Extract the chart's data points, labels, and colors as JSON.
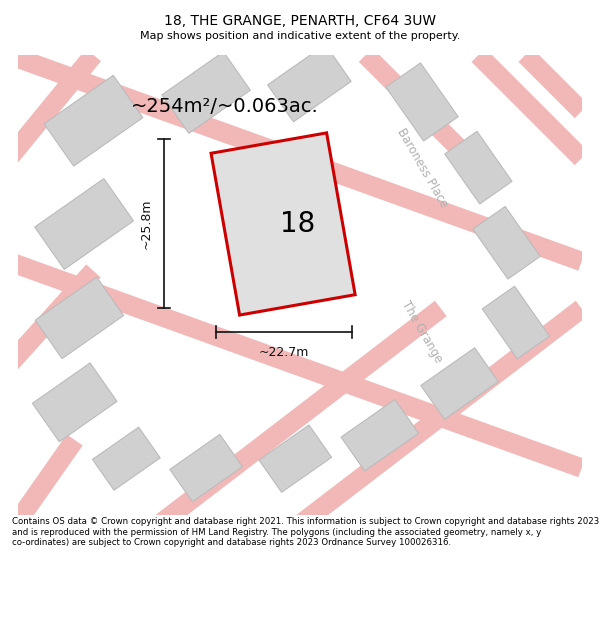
{
  "title": "18, THE GRANGE, PENARTH, CF64 3UW",
  "subtitle": "Map shows position and indicative extent of the property.",
  "footer": "Contains OS data © Crown copyright and database right 2021. This information is subject to Crown copyright and database rights 2023 and is reproduced with the permission of HM Land Registry. The polygons (including the associated geometry, namely x, y co-ordinates) are subject to Crown copyright and database rights 2023 Ordnance Survey 100026316.",
  "area_label": "~254m²/~0.063ac.",
  "width_label": "~22.7m",
  "height_label": "~25.8m",
  "plot_number": "18",
  "bg_color": "#f2f2f2",
  "plot_fill": "#e0e0e0",
  "plot_border": "#cc0000",
  "road_color": "#f2b8b8",
  "building_color": "#d0d0d0",
  "building_border": "#bbbbbb",
  "street_label_color": "#b0b0b0",
  "dim_color": "#111111",
  "white": "#ffffff"
}
